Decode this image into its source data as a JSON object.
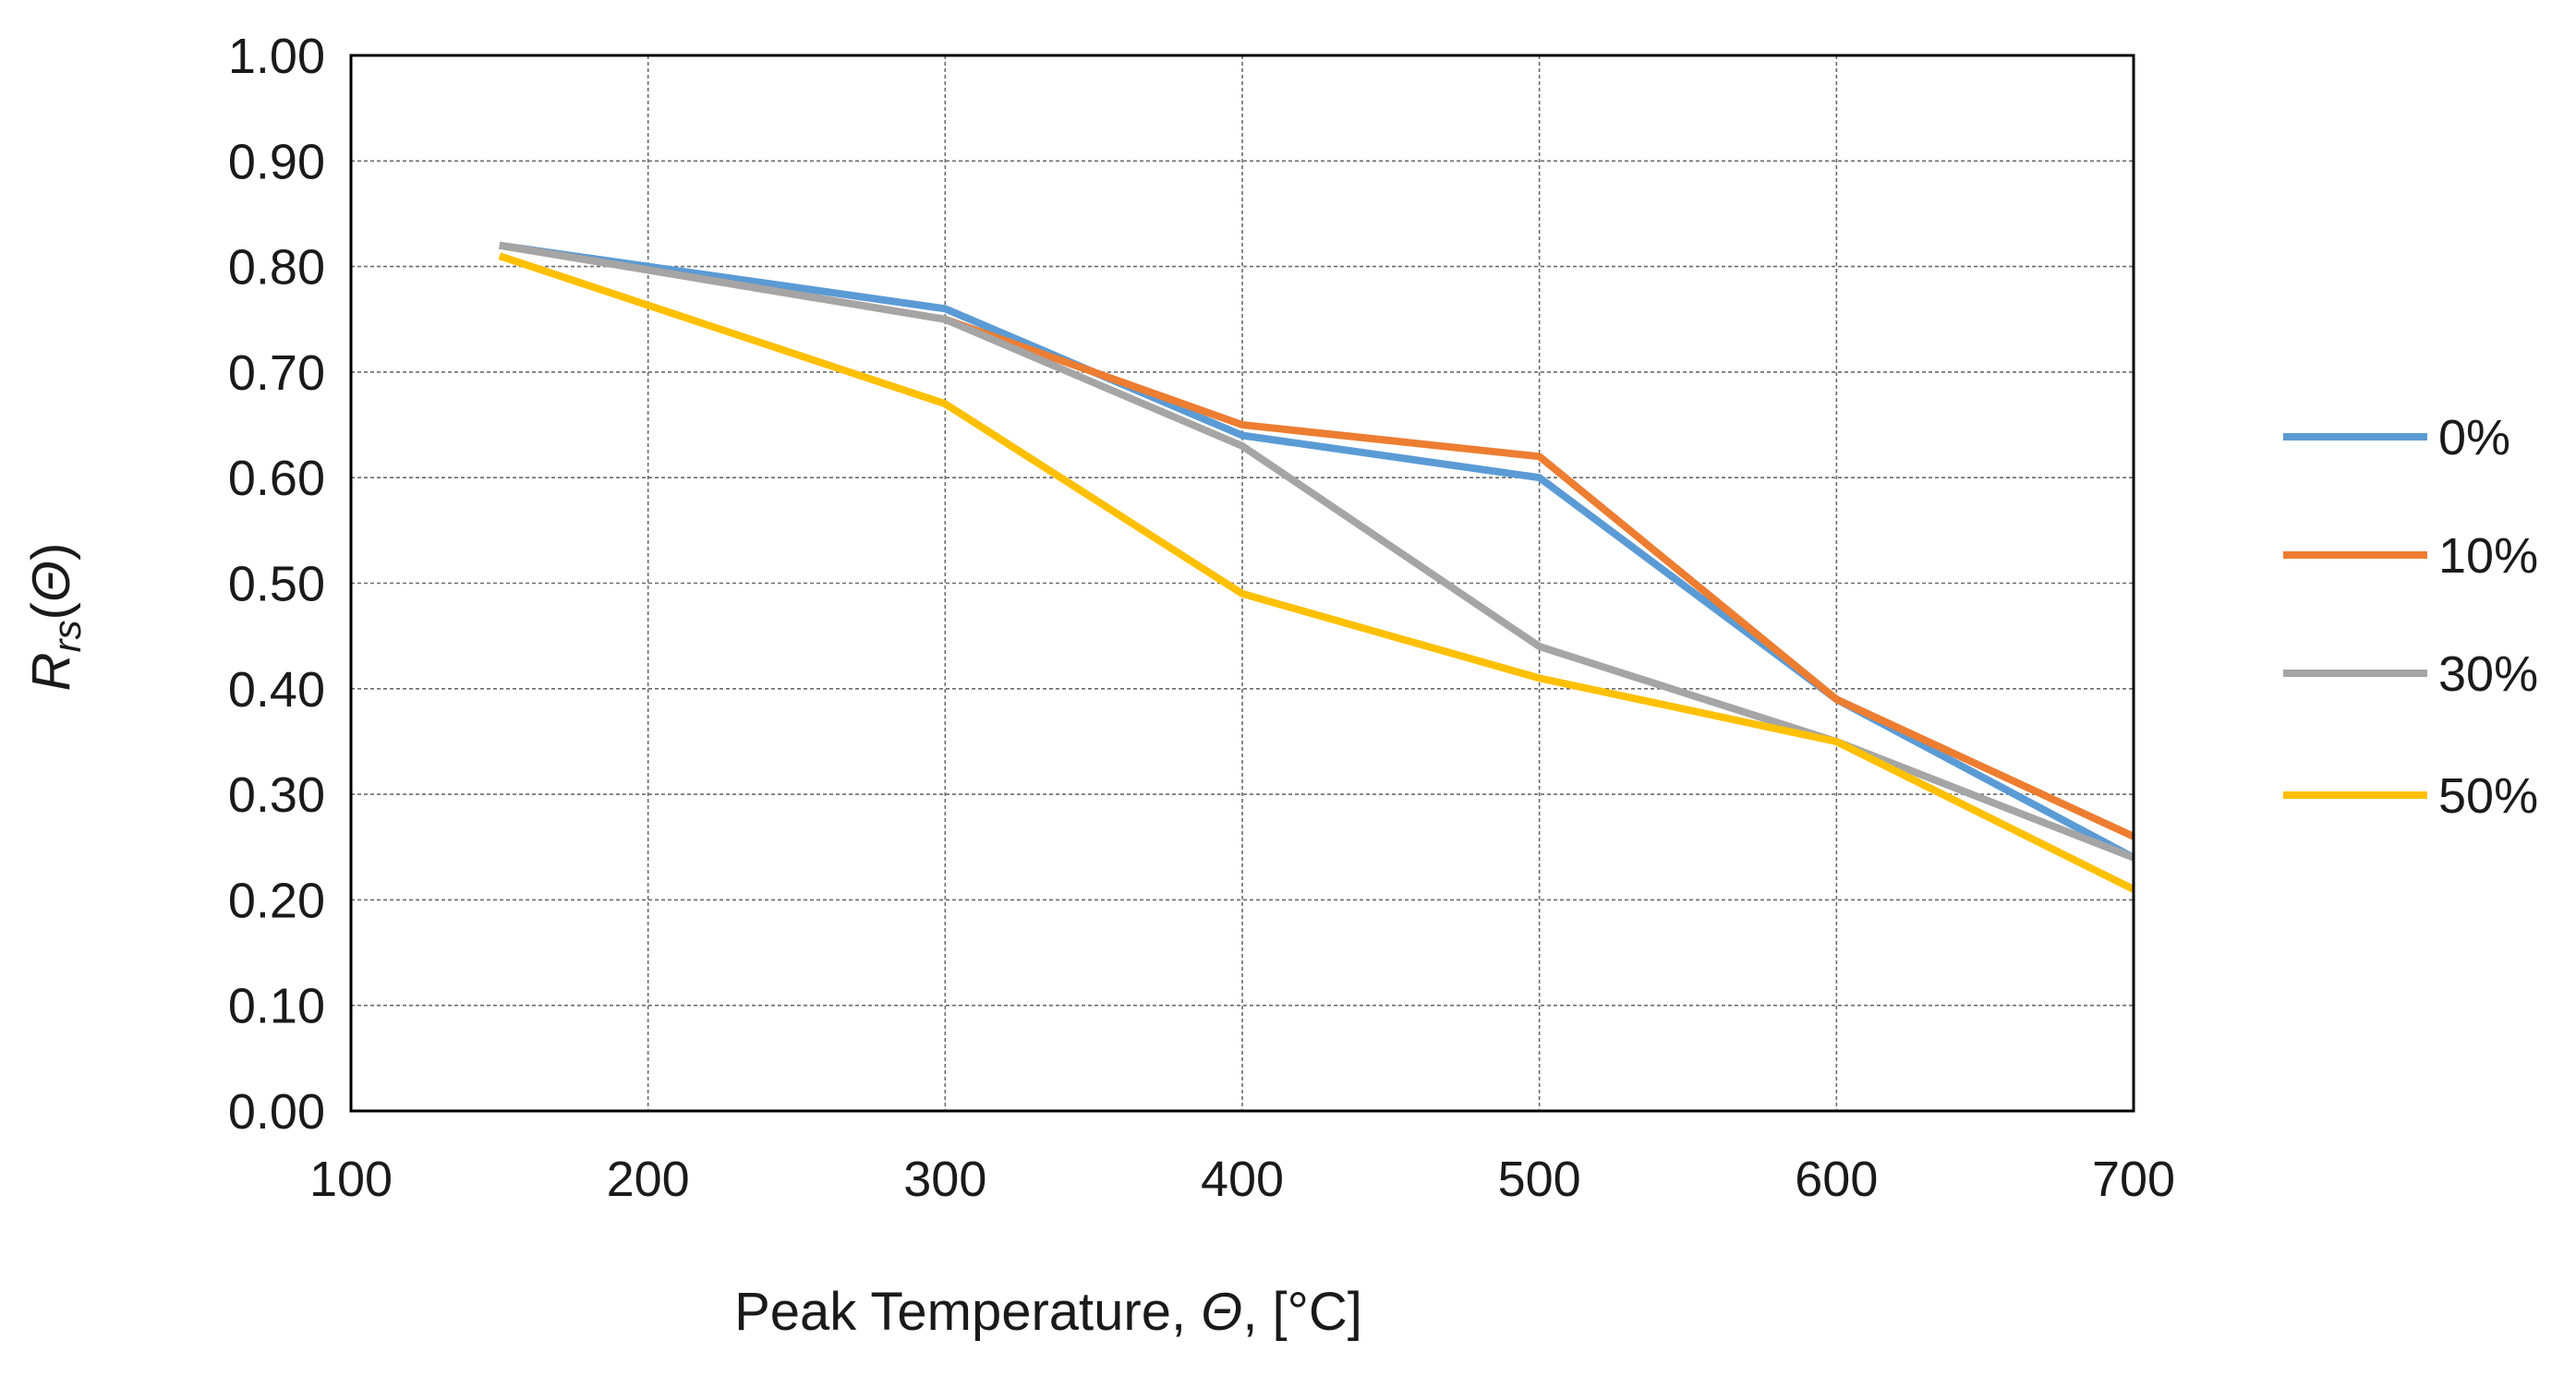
{
  "chart_data": {
    "type": "line",
    "title": "",
    "xlabel": {
      "prefix": "Peak Temperature, ",
      "symbol": "Θ",
      "suffix": ", [°C]"
    },
    "ylabel": {
      "base": "R",
      "subscript": "rs",
      "open": "(",
      "symbol": "Θ",
      "close": ")"
    },
    "xlim": [
      100,
      700
    ],
    "ylim": [
      0,
      1
    ],
    "xticks": [
      100,
      200,
      300,
      400,
      500,
      600,
      700
    ],
    "xtick_labels": [
      "100",
      "200",
      "300",
      "400",
      "500",
      "600",
      "700"
    ],
    "yticks": [
      0,
      0.1,
      0.2,
      0.3,
      0.4,
      0.5,
      0.6,
      0.7,
      0.8,
      0.9,
      1.0
    ],
    "ytick_labels": [
      "0.00",
      "0.10",
      "0.20",
      "0.30",
      "0.40",
      "0.50",
      "0.60",
      "0.70",
      "0.80",
      "0.90",
      "1.00"
    ],
    "grid": true,
    "legend_position": "right",
    "x": [
      150,
      300,
      400,
      500,
      600,
      700
    ],
    "series": [
      {
        "name": "0%",
        "color": "#5b9bd5",
        "values": [
          0.82,
          0.76,
          0.64,
          0.6,
          0.39,
          0.24
        ]
      },
      {
        "name": "10%",
        "color": "#ed7d31",
        "values": [
          0.82,
          0.75,
          0.65,
          0.62,
          0.39,
          0.26
        ]
      },
      {
        "name": "30%",
        "color": "#a5a5a5",
        "values": [
          0.82,
          0.75,
          0.63,
          0.44,
          0.35,
          0.24
        ]
      },
      {
        "name": "50%",
        "color": "#ffc000",
        "values": [
          0.81,
          0.67,
          0.49,
          0.41,
          0.35,
          0.21
        ]
      }
    ]
  }
}
